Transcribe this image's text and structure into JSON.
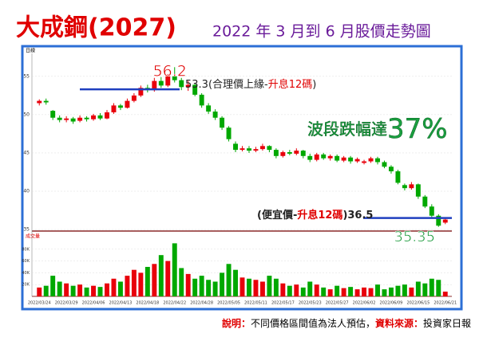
{
  "title": "大成鋼(2027)",
  "subtitle": "2022 年 3 月到 6 月股價走勢圖",
  "chart_data": {
    "type": "candlestick",
    "panel_label": "日線",
    "volume_label": "成交量",
    "categories": [
      "2022/03/24",
      null,
      null,
      null,
      "2022/03/29",
      null,
      null,
      null,
      "2022/04/06",
      null,
      null,
      null,
      "2022/04/13",
      null,
      null,
      null,
      "2022/04/18",
      null,
      null,
      null,
      "2022/04/22",
      null,
      null,
      null,
      "2022/04/28",
      null,
      null,
      null,
      "2022/05/05",
      null,
      null,
      null,
      "2022/05/11",
      null,
      null,
      null,
      "2022/05/17",
      null,
      null,
      null,
      "2022/05/23",
      null,
      null,
      null,
      "2022/05/27",
      null,
      null,
      null,
      "2022/06/02",
      null,
      null,
      null,
      "2022/06/09",
      null,
      null,
      null,
      "2022/06/15",
      null,
      null,
      null,
      "2022/06/21"
    ],
    "open": [
      51.5,
      51.8,
      50.5,
      49.6,
      49.3,
      49.5,
      49.2,
      49.6,
      49.4,
      49.9,
      49.5,
      50.3,
      51.2,
      50.9,
      51.8,
      52.5,
      53.5,
      53.2,
      54.4,
      53.8,
      55.0,
      54.5,
      53.6,
      53.9,
      52.6,
      51.2,
      50.4,
      49.6,
      48.3,
      46.2,
      45.4,
      45.6,
      45.3,
      45.5,
      45.9,
      45.4,
      44.6,
      45.1,
      44.9,
      45.3,
      44.6,
      44.1,
      44.8,
      44.3,
      44.6,
      44.0,
      44.4,
      43.9,
      43.7,
      43.9,
      44.3,
      43.8,
      43.2,
      42.6,
      40.8,
      40.4,
      40.9,
      39.3,
      38.0,
      36.8,
      35.9
    ],
    "close": [
      51.8,
      51.6,
      49.6,
      49.3,
      49.5,
      49.1,
      49.6,
      49.4,
      49.9,
      49.5,
      50.3,
      51.2,
      50.9,
      51.8,
      52.5,
      53.5,
      53.2,
      54.4,
      53.8,
      55.0,
      54.5,
      53.6,
      53.9,
      52.6,
      51.2,
      50.4,
      49.6,
      48.3,
      46.8,
      45.4,
      45.6,
      45.3,
      45.5,
      45.9,
      45.4,
      44.6,
      45.1,
      44.9,
      45.3,
      44.6,
      44.1,
      44.8,
      44.3,
      44.6,
      44.0,
      44.4,
      43.9,
      44.2,
      43.9,
      44.3,
      43.8,
      43.2,
      42.6,
      41.1,
      40.4,
      40.9,
      39.3,
      38.0,
      36.8,
      35.5,
      36.3
    ],
    "high": [
      52.0,
      52.1,
      50.6,
      49.9,
      49.8,
      49.7,
      49.9,
      49.8,
      50.1,
      50.2,
      50.6,
      51.5,
      51.4,
      52.1,
      52.8,
      53.8,
      53.9,
      54.8,
      54.9,
      55.3,
      56.2,
      54.8,
      54.4,
      54.0,
      52.8,
      51.5,
      50.7,
      49.8,
      48.5,
      46.5,
      45.9,
      45.9,
      45.8,
      46.2,
      46.0,
      45.6,
      45.3,
      45.4,
      45.6,
      45.4,
      44.9,
      45.0,
      45.0,
      44.8,
      44.8,
      44.6,
      44.6,
      44.4,
      44.1,
      44.5,
      44.5,
      44.0,
      43.4,
      42.8,
      41.0,
      41.2,
      41.0,
      39.5,
      38.3,
      37.0,
      36.6
    ],
    "low": [
      51.2,
      51.3,
      49.3,
      49.0,
      49.0,
      48.8,
      49.0,
      49.1,
      49.2,
      49.3,
      49.4,
      50.1,
      50.6,
      50.8,
      51.6,
      52.3,
      52.9,
      53.0,
      53.5,
      53.6,
      54.2,
      53.2,
      53.1,
      52.4,
      50.9,
      50.1,
      49.3,
      48.0,
      46.5,
      45.1,
      45.2,
      45.0,
      45.1,
      45.3,
      45.1,
      44.3,
      44.4,
      44.7,
      44.7,
      44.3,
      43.8,
      43.9,
      44.1,
      44.0,
      43.8,
      43.8,
      43.6,
      43.7,
      43.5,
      43.7,
      43.5,
      43.0,
      42.3,
      40.9,
      40.1,
      40.2,
      39.0,
      37.8,
      36.5,
      35.35,
      35.7
    ],
    "volume": [
      15000,
      18000,
      35000,
      25000,
      22000,
      18000,
      20000,
      15000,
      18000,
      16000,
      22000,
      30000,
      25000,
      35000,
      45000,
      40000,
      50000,
      55000,
      70000,
      60000,
      90000,
      48000,
      38000,
      30000,
      35000,
      28000,
      25000,
      40000,
      55000,
      45000,
      32000,
      30000,
      28000,
      25000,
      35000,
      30000,
      22000,
      18000,
      20000,
      15000,
      25000,
      20000,
      15000,
      12000,
      18000,
      14000,
      16000,
      12000,
      15000,
      14000,
      20000,
      12000,
      15000,
      18000,
      20000,
      15000,
      25000,
      22000,
      30000,
      28000,
      8000
    ],
    "up_color": "#e8000b",
    "down_color": "#00a800",
    "ylim": [
      34.8,
      58
    ],
    "yticks": [
      35,
      40,
      45,
      50,
      55
    ],
    "vol_ylim": [
      0,
      100000
    ],
    "vol_yticks": [
      {
        "value": 20000,
        "label": "20K"
      },
      {
        "value": 40000,
        "label": "40K"
      },
      {
        "value": 60000,
        "label": "60K"
      },
      {
        "value": 80000,
        "label": "80K"
      }
    ],
    "reference_lines": [
      {
        "value": 53.3,
        "parts": [
          "(合理價上緣-",
          "升息12碼",
          ")"
        ],
        "color": "#1f3fbf"
      },
      {
        "value": 36.5,
        "parts": [
          "(便宜價-",
          "升息12碼",
          ")"
        ],
        "color": "#1f3fbf"
      }
    ],
    "drop_annotation": {
      "text": "波段跌幅達",
      "emphasis": "37%"
    }
  },
  "footer": {
    "note_label": "說明：",
    "note": "不同價格區間值為法人預估，",
    "source_label": "資料來源：",
    "source": "投資家日報"
  }
}
